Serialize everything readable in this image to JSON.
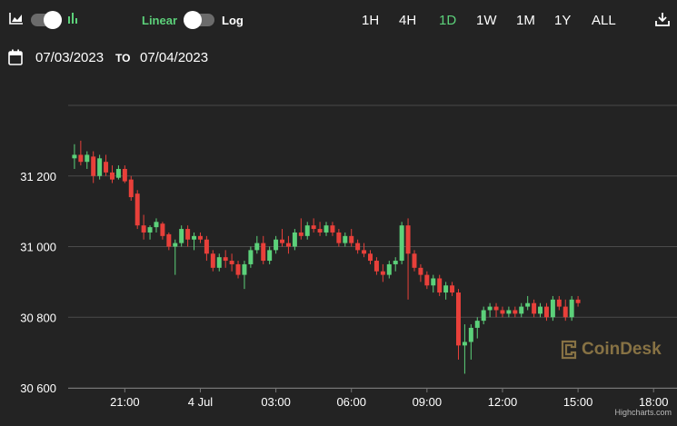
{
  "toolbar": {
    "linear_label": "Linear",
    "log_label": "Log",
    "ranges": [
      "1H",
      "4H",
      "1D",
      "1W",
      "1M",
      "1Y",
      "ALL"
    ],
    "active_range": "1D"
  },
  "date_range": {
    "from": "07/03/2023",
    "to_label": "TO",
    "to": "07/04/2023"
  },
  "watermark": "CoinDesk",
  "credits": "Highcharts.com",
  "colors": {
    "up": "#5cd17a",
    "down": "#e8403a",
    "grid": "#4a4a4a",
    "background": "#232323",
    "accent": "#5cd17a"
  },
  "chart_data": {
    "type": "candlestick",
    "title": "",
    "xlabel": "",
    "ylabel": "",
    "ylim": [
      30600,
      31400
    ],
    "yticks": [
      30600,
      30800,
      31000,
      31200
    ],
    "ytick_labels": [
      "30 600",
      "30 800",
      "31 000",
      "31 200"
    ],
    "xlim": [
      "2023-07-03 18:45",
      "2023-07-04 18:45"
    ],
    "xticks": [
      "2023-07-03 21:00",
      "2023-07-04 00:00",
      "2023-07-04 03:00",
      "2023-07-04 06:00",
      "2023-07-04 09:00",
      "2023-07-04 12:00",
      "2023-07-04 15:00",
      "2023-07-04 18:00"
    ],
    "xtick_labels": [
      "21:00",
      "4 Jul",
      "03:00",
      "06:00",
      "09:00",
      "12:00",
      "15:00",
      "18:00"
    ],
    "grid": true,
    "interval_minutes": 15,
    "start": "2023-07-03 19:00",
    "candles": [
      [
        31250,
        31290,
        31220,
        31260
      ],
      [
        31260,
        31300,
        31230,
        31240
      ],
      [
        31240,
        31270,
        31220,
        31260
      ],
      [
        31255,
        31270,
        31180,
        31200
      ],
      [
        31200,
        31260,
        31190,
        31250
      ],
      [
        31240,
        31260,
        31200,
        31210
      ],
      [
        31210,
        31230,
        31180,
        31190
      ],
      [
        31195,
        31230,
        31190,
        31220
      ],
      [
        31220,
        31230,
        31180,
        31185
      ],
      [
        31190,
        31200,
        31130,
        31140
      ],
      [
        31150,
        31160,
        31050,
        31060
      ],
      [
        31060,
        31090,
        31020,
        31040
      ],
      [
        31040,
        31060,
        31020,
        31055
      ],
      [
        31055,
        31080,
        31040,
        31070
      ],
      [
        31065,
        31070,
        31020,
        31030
      ],
      [
        31035,
        31040,
        30990,
        31000
      ],
      [
        31000,
        31020,
        30920,
        31010
      ],
      [
        31010,
        31060,
        31000,
        31050
      ],
      [
        31050,
        31060,
        31000,
        31020
      ],
      [
        31020,
        31040,
        30990,
        31030
      ],
      [
        31030,
        31040,
        31010,
        31020
      ],
      [
        31020,
        31030,
        30960,
        30980
      ],
      [
        30980,
        30990,
        30930,
        30940
      ],
      [
        30940,
        30980,
        30930,
        30970
      ],
      [
        30970,
        30990,
        30940,
        30960
      ],
      [
        30960,
        30980,
        30930,
        30950
      ],
      [
        30950,
        30960,
        30910,
        30920
      ],
      [
        30920,
        30960,
        30880,
        30950
      ],
      [
        30950,
        31000,
        30940,
        30990
      ],
      [
        30990,
        31030,
        30980,
        31010
      ],
      [
        31010,
        31030,
        30950,
        30960
      ],
      [
        30960,
        31000,
        30950,
        30990
      ],
      [
        30990,
        31030,
        30980,
        31020
      ],
      [
        31020,
        31050,
        31000,
        31010
      ],
      [
        31010,
        31030,
        30980,
        31000
      ],
      [
        31000,
        31050,
        30990,
        31040
      ],
      [
        31040,
        31080,
        31020,
        31030
      ],
      [
        31030,
        31070,
        31020,
        31060
      ],
      [
        31060,
        31080,
        31040,
        31050
      ],
      [
        31050,
        31070,
        31030,
        31040
      ],
      [
        31040,
        31070,
        31030,
        31060
      ],
      [
        31060,
        31070,
        31030,
        31040
      ],
      [
        31040,
        31050,
        31000,
        31010
      ],
      [
        31010,
        31040,
        31000,
        31030
      ],
      [
        31030,
        31050,
        31000,
        31010
      ],
      [
        31010,
        31020,
        30980,
        30990
      ],
      [
        30990,
        31010,
        30970,
        30980
      ],
      [
        30980,
        30990,
        30950,
        30960
      ],
      [
        30960,
        30970,
        30920,
        30930
      ],
      [
        30930,
        30950,
        30900,
        30920
      ],
      [
        30920,
        30960,
        30910,
        30950
      ],
      [
        30950,
        30970,
        30930,
        30960
      ],
      [
        30960,
        31070,
        30950,
        31060
      ],
      [
        31060,
        31080,
        30850,
        30980
      ],
      [
        30980,
        30990,
        30930,
        30940
      ],
      [
        30940,
        30950,
        30900,
        30920
      ],
      [
        30920,
        30930,
        30880,
        30890
      ],
      [
        30890,
        30920,
        30870,
        30910
      ],
      [
        30910,
        30920,
        30860,
        30870
      ],
      [
        30870,
        30900,
        30850,
        30890
      ],
      [
        30890,
        30900,
        30860,
        30870
      ],
      [
        30870,
        30880,
        30680,
        30720
      ],
      [
        30720,
        30780,
        30640,
        30730
      ],
      [
        30730,
        30780,
        30680,
        30770
      ],
      [
        30770,
        30800,
        30740,
        30790
      ],
      [
        30790,
        30830,
        30780,
        30820
      ],
      [
        30820,
        30840,
        30800,
        30830
      ],
      [
        30830,
        30840,
        30800,
        30820
      ],
      [
        30820,
        30830,
        30800,
        30810
      ],
      [
        30810,
        30830,
        30800,
        30820
      ],
      [
        30820,
        30830,
        30800,
        30810
      ],
      [
        30810,
        30840,
        30800,
        30830
      ],
      [
        30830,
        30860,
        30820,
        30840
      ],
      [
        30840,
        30850,
        30800,
        30810
      ],
      [
        30810,
        30840,
        30800,
        30830
      ],
      [
        30830,
        30840,
        30790,
        30800
      ],
      [
        30800,
        30860,
        30790,
        30850
      ],
      [
        30850,
        30860,
        30820,
        30830
      ],
      [
        30830,
        30850,
        30790,
        30800
      ],
      [
        30800,
        30860,
        30790,
        30850
      ],
      [
        30850,
        30860,
        30830,
        30840
      ]
    ]
  }
}
